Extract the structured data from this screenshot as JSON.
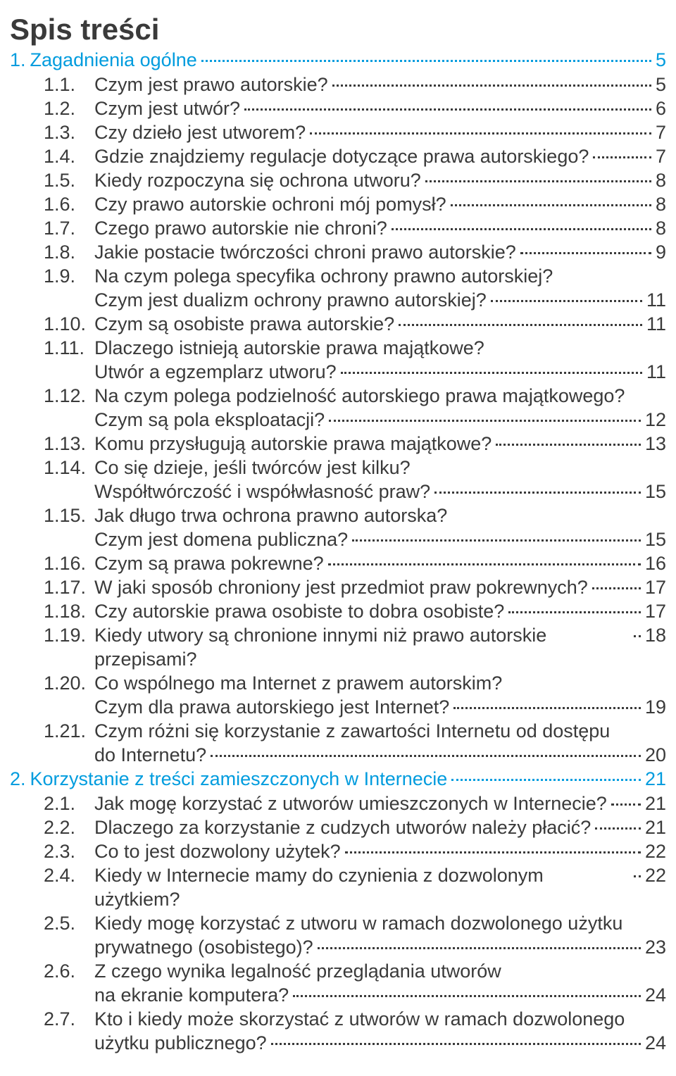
{
  "title": "Spis treści",
  "chapters": [
    {
      "num": "1.",
      "title": "Zagadnienia ogólne",
      "page": "5",
      "entries": [
        {
          "num": "1.1.",
          "lines": [
            "Czym jest prawo autorskie?"
          ],
          "page": "5"
        },
        {
          "num": "1.2.",
          "lines": [
            "Czym jest utwór?"
          ],
          "page": "6"
        },
        {
          "num": "1.3.",
          "lines": [
            "Czy dzieło jest utworem?"
          ],
          "page": "7"
        },
        {
          "num": "1.4.",
          "lines": [
            "Gdzie znajdziemy regulacje dotyczące prawa autorskiego?"
          ],
          "page": "7"
        },
        {
          "num": "1.5.",
          "lines": [
            "Kiedy rozpoczyna się ochrona utworu?"
          ],
          "page": "8"
        },
        {
          "num": "1.6.",
          "lines": [
            "Czy prawo autorskie ochroni mój pomysł?"
          ],
          "page": "8"
        },
        {
          "num": "1.7.",
          "lines": [
            "Czego prawo autorskie nie chroni?"
          ],
          "page": "8"
        },
        {
          "num": "1.8.",
          "lines": [
            "Jakie postacie twórczości chroni prawo autorskie?"
          ],
          "page": "9"
        },
        {
          "num": "1.9.",
          "lines": [
            "Na czym polega specyfika ochrony prawno autorskiej?",
            "Czym jest dualizm ochrony prawno autorskiej?"
          ],
          "page": "11"
        },
        {
          "num": "1.10.",
          "lines": [
            "Czym są osobiste prawa autorskie?"
          ],
          "page": "11"
        },
        {
          "num": "1.11.",
          "lines": [
            "Dlaczego istnieją autorskie prawa majątkowe?",
            "Utwór a egzemplarz utworu?"
          ],
          "page": "11"
        },
        {
          "num": "1.12.",
          "lines": [
            "Na czym polega podzielność autorskiego prawa majątkowego?",
            "Czym są pola eksploatacji?"
          ],
          "page": "12"
        },
        {
          "num": "1.13.",
          "lines": [
            "Komu przysługują autorskie prawa majątkowe?"
          ],
          "page": "13"
        },
        {
          "num": "1.14.",
          "lines": [
            "Co się dzieje, jeśli twórców jest kilku?",
            "Współtwórczość i współwłasność praw?"
          ],
          "page": "15"
        },
        {
          "num": "1.15.",
          "lines": [
            "Jak długo trwa ochrona prawno autorska?",
            "Czym jest domena publiczna?"
          ],
          "page": "15"
        },
        {
          "num": "1.16.",
          "lines": [
            "Czym są prawa pokrewne?"
          ],
          "page": "16"
        },
        {
          "num": "1.17.",
          "lines": [
            "W jaki sposób chroniony jest przedmiot praw pokrewnych?"
          ],
          "page": "17"
        },
        {
          "num": "1.18.",
          "lines": [
            "Czy autorskie prawa osobiste to dobra osobiste?"
          ],
          "page": "17"
        },
        {
          "num": "1.19.",
          "lines": [
            "Kiedy utwory są chronione innymi niż prawo autorskie przepisami?"
          ],
          "page": "18"
        },
        {
          "num": "1.20.",
          "lines": [
            "Co wspólnego ma Internet z prawem autorskim?",
            "Czym dla prawa autorskiego jest Internet?"
          ],
          "page": "19"
        },
        {
          "num": "1.21.",
          "lines": [
            "Czym różni się korzystanie z zawartości Internetu od dostępu",
            "do Internetu?"
          ],
          "page": "20"
        }
      ]
    },
    {
      "num": "2.",
      "title": "Korzystanie z treści zamieszczonych w Internecie",
      "page": "21",
      "entries": [
        {
          "num": "2.1.",
          "lines": [
            "Jak mogę korzystać z utworów umieszczonych w Internecie?"
          ],
          "page": "21"
        },
        {
          "num": "2.2.",
          "lines": [
            "Dlaczego za korzystanie z cudzych utworów należy płacić?"
          ],
          "page": "21"
        },
        {
          "num": "2.3.",
          "lines": [
            "Co to jest dozwolony użytek?"
          ],
          "page": "22"
        },
        {
          "num": "2.4.",
          "lines": [
            "Kiedy w Internecie mamy do czynienia z dozwolonym użytkiem?"
          ],
          "page": "22"
        },
        {
          "num": "2.5.",
          "lines": [
            "Kiedy mogę korzystać z utworu w ramach dozwolonego użytku",
            "prywatnego (osobistego)?"
          ],
          "page": "23"
        },
        {
          "num": "2.6.",
          "lines": [
            "Z czego wynika legalność przeglądania utworów",
            "na ekranie komputera?"
          ],
          "page": "24"
        },
        {
          "num": "2.7.",
          "lines": [
            "Kto i kiedy może skorzystać z utworów w ramach dozwolonego",
            "użytku publicznego?"
          ],
          "page": "24"
        }
      ]
    }
  ]
}
